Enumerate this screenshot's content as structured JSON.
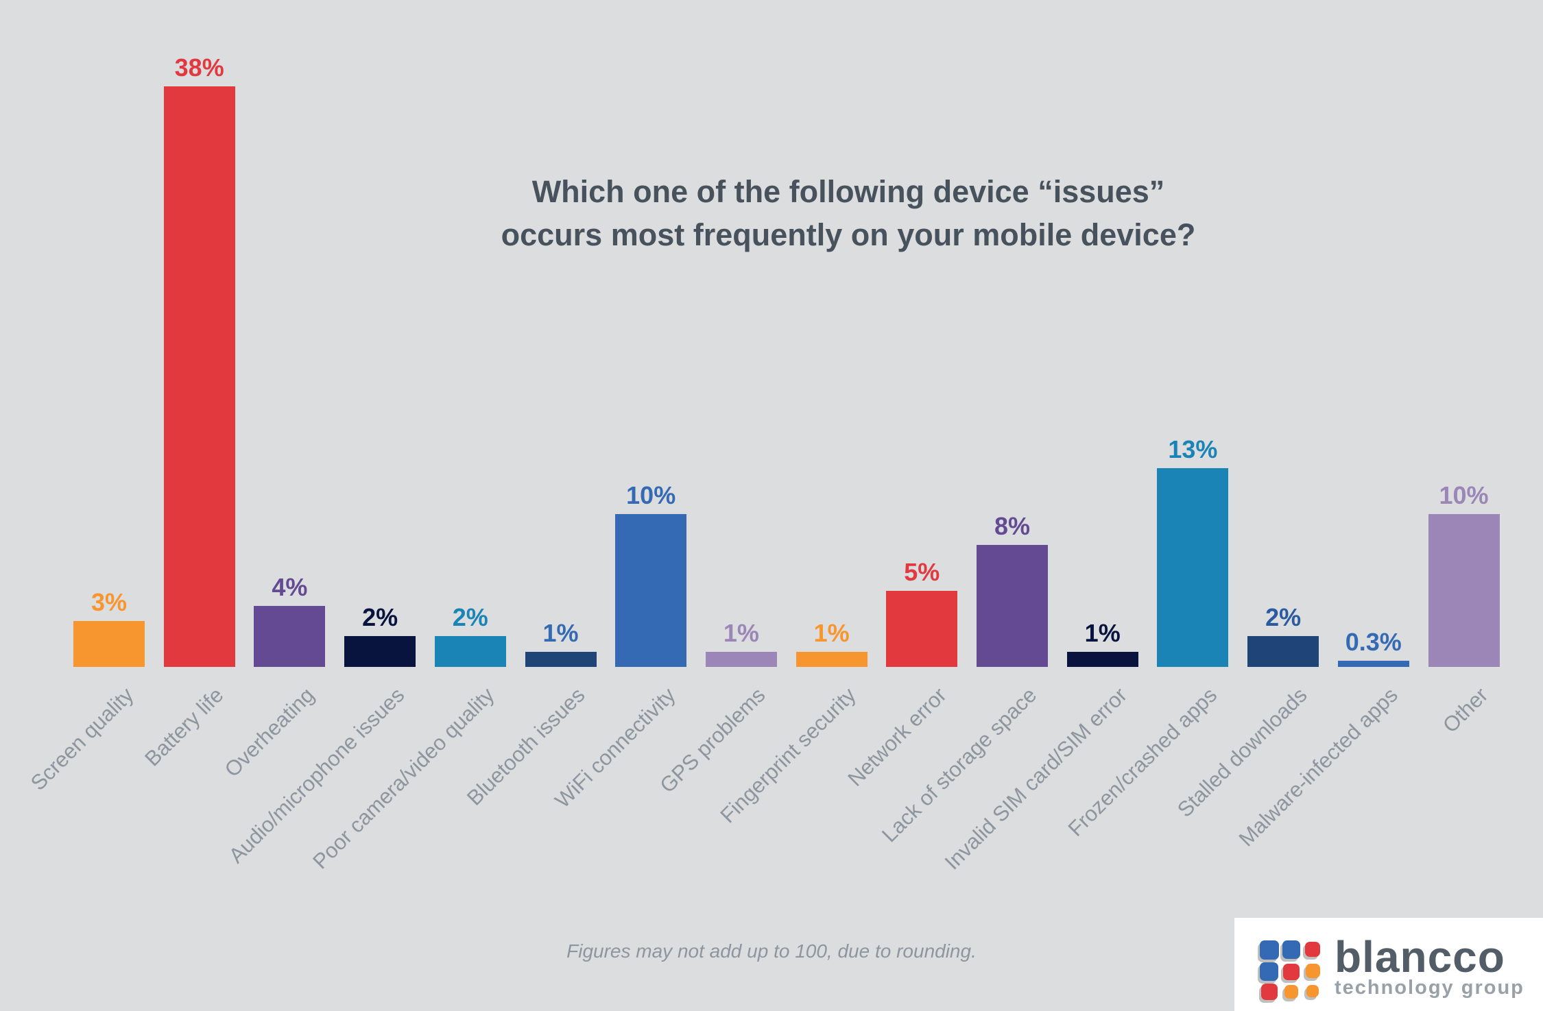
{
  "chart_data": {
    "type": "bar",
    "title": [
      "Which one of the following device “issues”",
      "occurs most frequently on your mobile device?"
    ],
    "categories": [
      "Screen quality",
      "Battery life",
      "Overheating",
      "Audio/microphone issues",
      "Poor camera/video quality",
      "Bluetooth issues",
      "WiFi connectivity",
      "GPS problems",
      "Fingerprint security",
      "Network error",
      "Lack of storage space",
      "Invalid SIM card/SIM error",
      "Frozen/crashed apps",
      "Stalled downloads",
      "Malware-infected apps",
      "Other"
    ],
    "values": [
      3,
      38,
      4,
      2,
      2,
      1,
      10,
      1,
      1,
      5,
      8,
      1,
      13,
      2,
      0.3,
      10
    ],
    "value_labels": [
      "3%",
      "38%",
      "4%",
      "2%",
      "2%",
      "1%",
      "10%",
      "1%",
      "1%",
      "5%",
      "8%",
      "1%",
      "13%",
      "2%",
      "0.3%",
      "10%"
    ],
    "colors": [
      "#f7952f",
      "#e2393f",
      "#644a92",
      "#08133e",
      "#1b84b6",
      "#1f4478",
      "#346ab3",
      "#9b86b7",
      "#f7952f",
      "#e2393f",
      "#644a92",
      "#08133e",
      "#1b84b6",
      "#1f4478",
      "#346ab3",
      "#9b86b7"
    ],
    "label_colors": [
      "#f7952f",
      "#e2393f",
      "#644a92",
      "#08133e",
      "#1b84b6",
      "#346ab3",
      "#346ab3",
      "#9b86b7",
      "#f7952f",
      "#e2393f",
      "#644a92",
      "#08133e",
      "#1b84b6",
      "#2a5aa0",
      "#346ab3",
      "#9b86b7"
    ],
    "xlabel": "",
    "ylabel": "",
    "ylim": [
      0,
      38
    ],
    "grid": false
  },
  "footnote": "Figures may not add up to 100, due to rounding.",
  "logo": {
    "name": "blancco",
    "tagline": "technology group"
  }
}
